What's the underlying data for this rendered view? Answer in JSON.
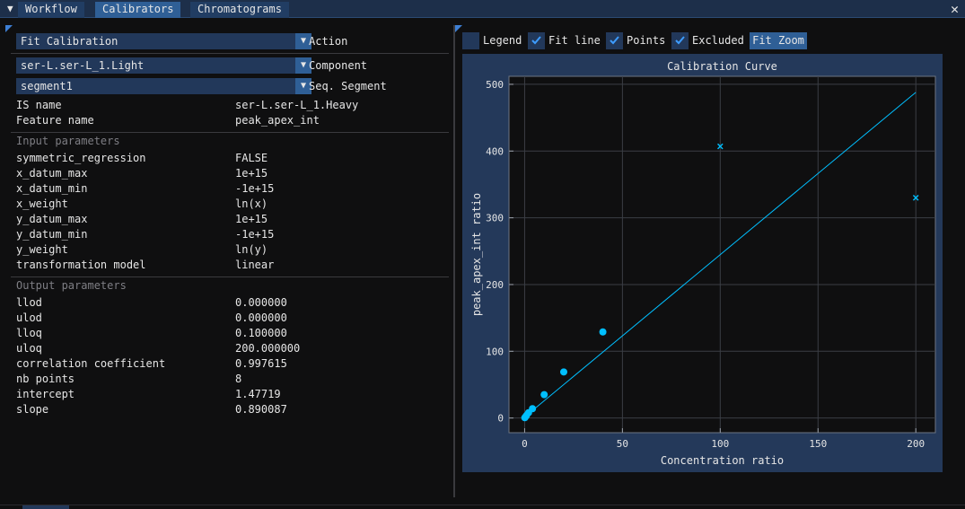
{
  "tabs": [
    {
      "label": "Workflow",
      "active": false
    },
    {
      "label": "Calibrators",
      "active": true
    },
    {
      "label": "Chromatograms",
      "active": false
    }
  ],
  "left": {
    "action": {
      "value": "Fit Calibration",
      "label": "Action"
    },
    "component": {
      "value": "ser-L.ser-L_1.Light",
      "label": "Component"
    },
    "segment": {
      "value": "segment1",
      "label": "Seq. Segment"
    },
    "info": [
      {
        "key": "IS name",
        "value": "ser-L.ser-L_1.Heavy"
      },
      {
        "key": "Feature name",
        "value": "peak_apex_int"
      }
    ],
    "input_title": "Input parameters",
    "input_params": [
      {
        "key": "symmetric_regression",
        "value": "FALSE"
      },
      {
        "key": "x_datum_max",
        "value": "1e+15"
      },
      {
        "key": "x_datum_min",
        "value": "-1e+15"
      },
      {
        "key": "x_weight",
        "value": "ln(x)"
      },
      {
        "key": "y_datum_max",
        "value": "1e+15"
      },
      {
        "key": "y_datum_min",
        "value": "-1e+15"
      },
      {
        "key": "y_weight",
        "value": "ln(y)"
      },
      {
        "key": "transformation model",
        "value": "linear"
      }
    ],
    "output_title": "Output parameters",
    "output_params": [
      {
        "key": "llod",
        "value": "0.000000"
      },
      {
        "key": "ulod",
        "value": "0.000000"
      },
      {
        "key": "lloq",
        "value": "0.100000"
      },
      {
        "key": "uloq",
        "value": "200.000000"
      },
      {
        "key": "correlation coefficient",
        "value": "0.997615"
      },
      {
        "key": "nb points",
        "value": "8"
      },
      {
        "key": "intercept",
        "value": "1.47719"
      },
      {
        "key": "slope",
        "value": "0.890087"
      }
    ]
  },
  "toolbar": {
    "legend": {
      "label": "Legend",
      "checked": false
    },
    "fit_line": {
      "label": "Fit line",
      "checked": true
    },
    "points": {
      "label": "Points",
      "checked": true
    },
    "excluded": {
      "label": "Excluded",
      "checked": true
    },
    "fit_zoom": "Fit Zoom"
  },
  "colors": {
    "accent": "#00bfff",
    "frame_bg": "#24395a",
    "plot_bg": "#0f0f10"
  },
  "chart_data": {
    "type": "scatter",
    "title": "Calibration Curve",
    "xlabel": "Concentration ratio",
    "ylabel": "peak_apex_int ratio",
    "xlim": [
      -8,
      210
    ],
    "ylim": [
      -22,
      512
    ],
    "xticks": [
      0,
      50,
      100,
      150,
      200
    ],
    "yticks": [
      0,
      100,
      200,
      300,
      400,
      500
    ],
    "grid": true,
    "legend": false,
    "series": [
      {
        "kind": "points",
        "x": [
          0.1,
          0.5,
          1,
          2,
          4,
          10,
          20,
          40
        ],
        "y": [
          0.5,
          2,
          4,
          8,
          14,
          35,
          69,
          129
        ]
      },
      {
        "kind": "excluded",
        "x": [
          100,
          200
        ],
        "y": [
          407,
          330
        ]
      },
      {
        "kind": "fit_line",
        "x": [
          0,
          200
        ],
        "y": [
          1.47719,
          488
        ]
      }
    ]
  }
}
